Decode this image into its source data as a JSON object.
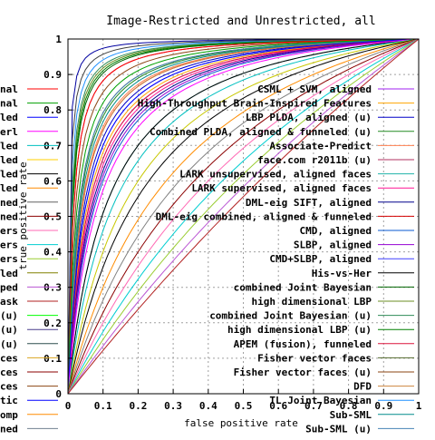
{
  "chart_data": {
    "type": "line",
    "title": "Image-Restricted and Unrestricted, all",
    "xlabel": "false positive rate",
    "ylabel": "true positive rate",
    "xlim": [
      0,
      1
    ],
    "ylim": [
      0,
      1
    ],
    "x_ticks": [
      "0",
      "0.1",
      "0.2",
      "0.3",
      "0.4",
      "0.5",
      "0.6",
      "0.7",
      "0.8",
      "0.9",
      "1"
    ],
    "y_ticks": [
      "0",
      "0.1",
      "0.2",
      "0.3",
      "0.4",
      "0.5",
      "0.6",
      "0.7",
      "0.8",
      "0.9",
      "1"
    ],
    "grid": "dashed",
    "legend_placement": "right, inside plot",
    "series": [
      {
        "name": "CSML + SVM, aligned",
        "color": "#a020f0",
        "k": 0.06
      },
      {
        "name": "High-Throughput Brain-Inspired Features",
        "color": "#ffa500",
        "k": 0.055
      },
      {
        "name": "LBP PLDA, aligned (u)",
        "color": "#0000c8",
        "k": 0.045
      },
      {
        "name": "Combined PLDA, aligned & funneled (u)",
        "color": "#228b22",
        "k": 0.032
      },
      {
        "name": "Associate-Predict",
        "color": "#ff7f50",
        "k": 0.038
      },
      {
        "name": "face.com r2011b (u)",
        "color": "#b03060",
        "k": 0.015
      },
      {
        "name": "LARK unsupervised, aligned faces",
        "color": "#20b2aa",
        "k": 0.12
      },
      {
        "name": "LARK supervised, aligned faces",
        "color": "#ff1493",
        "k": 0.065
      },
      {
        "name": "DML-eig SIFT, aligned",
        "color": "#00008b",
        "k": 0.07
      },
      {
        "name": "DML-eig combined, aligned & funneled",
        "color": "#d40000",
        "k": 0.04
      },
      {
        "name": "CMD, aligned",
        "color": "#0a5ad0",
        "k": 0.08
      },
      {
        "name": "SLBP, aligned",
        "color": "#9400d3",
        "k": 0.075
      },
      {
        "name": "CMD+SLBP, aligned",
        "color": "#4040ff",
        "k": 0.05
      },
      {
        "name": "His-vs-Her",
        "color": "#000000",
        "k": 0.12
      },
      {
        "name": "combined Joint Bayesian",
        "color": "#006400",
        "k": 0.012
      },
      {
        "name": "high dimensional LBP",
        "color": "#6b8e23",
        "k": 0.01
      },
      {
        "name": "combined Joint Bayesian (u)",
        "color": "#2e8b57",
        "k": 0.009
      },
      {
        "name": "high dimensional LBP (u)",
        "color": "#008000",
        "k": 0.011
      },
      {
        "name": "APEM (fusion), funneled",
        "color": "#dc143c",
        "k": 0.06
      },
      {
        "name": "Fisher vector faces",
        "color": "#556b2f",
        "k": 0.03
      },
      {
        "name": "Fisher vector faces (u)",
        "color": "#8b4513",
        "k": 0.02
      },
      {
        "name": "DFD",
        "color": "#cd853f",
        "k": 0.04
      },
      {
        "name": "TL Joint Bayesian",
        "color": "#1e90ff",
        "k": 0.007
      },
      {
        "name": "Sub-SML",
        "color": "#008b8b",
        "k": 0.035
      },
      {
        "name": "Sub-SML (u)",
        "color": "#4682b4",
        "k": 0.03
      }
    ],
    "left_legend_fragments": [
      {
        "text": "nal",
        "color": "#ff0000"
      },
      {
        "text": "nal",
        "color": "#00a000"
      },
      {
        "text": "led",
        "color": "#0000ff"
      },
      {
        "text": "erl",
        "color": "#ff00ff"
      },
      {
        "text": "led",
        "color": "#00c0c0"
      },
      {
        "text": "led",
        "color": "#ffd000"
      },
      {
        "text": "led",
        "color": "#000000"
      },
      {
        "text": "led",
        "color": "#ff8c00"
      },
      {
        "text": "ned",
        "color": "#606060"
      },
      {
        "text": "ned",
        "color": "#8b0000"
      },
      {
        "text": "ers",
        "color": "#ff69b4"
      },
      {
        "text": "ers",
        "color": "#00ced1"
      },
      {
        "text": "ers",
        "color": "#9acd32"
      },
      {
        "text": "led",
        "color": "#808000"
      },
      {
        "text": "ped",
        "color": "#ba55d3"
      },
      {
        "text": "ask",
        "color": "#b22222"
      },
      {
        "text": "(u)",
        "color": "#00ff00"
      },
      {
        "text": "(u)",
        "color": "#483d8b"
      },
      {
        "text": "(u)",
        "color": "#2f4f4f"
      },
      {
        "text": "ces",
        "color": "#daa520"
      },
      {
        "text": "ces",
        "color": "#8b0000"
      },
      {
        "text": "ces",
        "color": "#8b4513"
      },
      {
        "text": "tic",
        "color": "#0000ff"
      },
      {
        "text": "omp",
        "color": "#ff8c00"
      },
      {
        "text": "ned",
        "color": "#708090"
      }
    ]
  }
}
